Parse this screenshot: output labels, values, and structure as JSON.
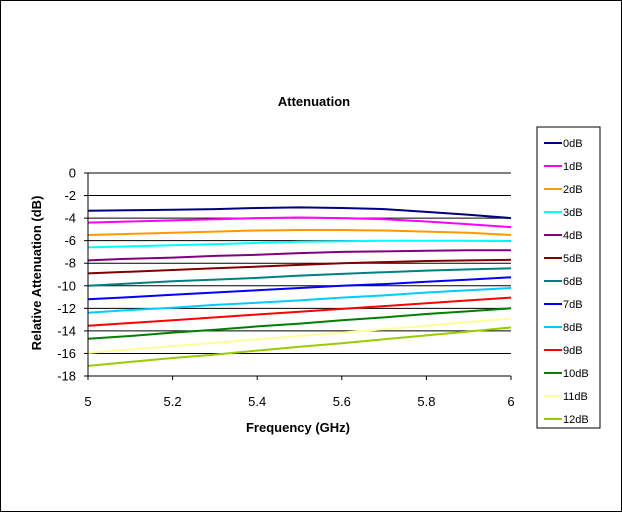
{
  "chart_data": {
    "type": "line",
    "title": "Attenuation",
    "xlabel": "Frequency (GHz)",
    "ylabel": "Relative Attenuation (dB)",
    "xlim": [
      5,
      6
    ],
    "ylim": [
      -18,
      0
    ],
    "x_ticks": [
      5,
      5.2,
      5.4,
      5.6,
      5.8,
      6
    ],
    "x_tick_labels": [
      "5",
      "5.2",
      "5.4",
      "5.6",
      "5.8",
      "6"
    ],
    "y_ticks": [
      0,
      -2,
      -4,
      -6,
      -8,
      -10,
      -12,
      -14,
      -16,
      -18
    ],
    "y_tick_labels": [
      "0",
      "-2",
      "-4",
      "-6",
      "-8",
      "-10",
      "-12",
      "-14",
      "-16",
      "-18"
    ],
    "grid": "horizontal",
    "legend_position": "right",
    "x": [
      5,
      5.1,
      5.2,
      5.3,
      5.4,
      5.5,
      5.6,
      5.7,
      5.8,
      5.9,
      6
    ],
    "series": [
      {
        "name": "0dB",
        "color": "#000080",
        "values": [
          -3.35,
          -3.3,
          -3.25,
          -3.2,
          -3.1,
          -3.05,
          -3.1,
          -3.2,
          -3.45,
          -3.7,
          -4.0
        ]
      },
      {
        "name": "1dB",
        "color": "#ff00ff",
        "values": [
          -4.4,
          -4.3,
          -4.2,
          -4.1,
          -4.0,
          -3.95,
          -4.0,
          -4.1,
          -4.3,
          -4.55,
          -4.8
        ]
      },
      {
        "name": "2dB",
        "color": "#ff9900",
        "values": [
          -5.5,
          -5.4,
          -5.3,
          -5.2,
          -5.1,
          -5.05,
          -5.05,
          -5.1,
          -5.2,
          -5.3,
          -5.5
        ]
      },
      {
        "name": "3dB",
        "color": "#00ffff",
        "values": [
          -6.6,
          -6.5,
          -6.4,
          -6.3,
          -6.2,
          -6.1,
          -6.05,
          -6.0,
          -6.0,
          -6.0,
          -6.05
        ]
      },
      {
        "name": "4dB",
        "color": "#800080",
        "values": [
          -7.75,
          -7.6,
          -7.5,
          -7.35,
          -7.25,
          -7.1,
          -7.0,
          -6.95,
          -6.9,
          -6.85,
          -6.85
        ]
      },
      {
        "name": "5dB",
        "color": "#800000",
        "values": [
          -8.9,
          -8.75,
          -8.6,
          -8.45,
          -8.3,
          -8.15,
          -8.0,
          -7.9,
          -7.8,
          -7.75,
          -7.7
        ]
      },
      {
        "name": "6dB",
        "color": "#008080",
        "values": [
          -10.0,
          -9.8,
          -9.6,
          -9.45,
          -9.3,
          -9.1,
          -8.95,
          -8.8,
          -8.65,
          -8.55,
          -8.45
        ]
      },
      {
        "name": "7dB",
        "color": "#0000ff",
        "values": [
          -11.2,
          -11.0,
          -10.8,
          -10.6,
          -10.4,
          -10.2,
          -10.0,
          -9.85,
          -9.65,
          -9.45,
          -9.25
        ]
      },
      {
        "name": "8dB",
        "color": "#00ccff",
        "values": [
          -12.4,
          -12.15,
          -11.95,
          -11.7,
          -11.5,
          -11.3,
          -11.05,
          -10.85,
          -10.6,
          -10.4,
          -10.2
        ]
      },
      {
        "name": "9dB",
        "color": "#ff0000",
        "values": [
          -13.55,
          -13.3,
          -13.05,
          -12.8,
          -12.55,
          -12.3,
          -12.05,
          -11.8,
          -11.55,
          -11.3,
          -11.05
        ]
      },
      {
        "name": "10dB",
        "color": "#008000",
        "values": [
          -14.7,
          -14.45,
          -14.15,
          -13.9,
          -13.6,
          -13.35,
          -13.05,
          -12.8,
          -12.5,
          -12.25,
          -12.0
        ]
      },
      {
        "name": "11dB",
        "color": "#ffff99",
        "values": [
          -15.95,
          -15.65,
          -15.35,
          -15.05,
          -14.75,
          -14.45,
          -14.15,
          -13.85,
          -13.55,
          -13.2,
          -12.9
        ]
      },
      {
        "name": "12dB",
        "color": "#99cc00",
        "values": [
          -17.1,
          -16.75,
          -16.4,
          -16.1,
          -15.75,
          -15.4,
          -15.1,
          -14.75,
          -14.4,
          -14.05,
          -13.7
        ]
      }
    ]
  }
}
